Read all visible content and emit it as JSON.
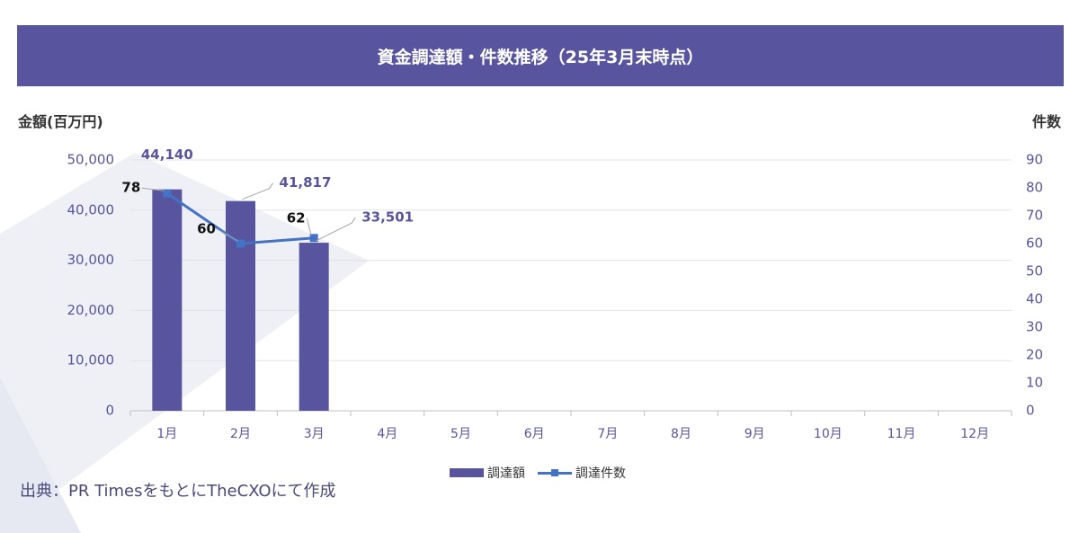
{
  "title": "資金調達額・件数推移（25年3月末時点）",
  "left_axis_title": "金額(百万円)",
  "right_axis_title": "件数",
  "source_text": "出典：PR TimesをもとにTheCXOにて作成",
  "colors": {
    "bar": "#58559e",
    "line": "#4472c4",
    "title_bg": "#58559e"
  },
  "chart_data": {
    "type": "bar",
    "categories": [
      "1月",
      "2月",
      "3月",
      "4月",
      "5月",
      "6月",
      "7月",
      "8月",
      "9月",
      "10月",
      "11月",
      "12月"
    ],
    "series": [
      {
        "name": "調達額",
        "type": "bar",
        "axis": "left",
        "values": [
          44140,
          41817,
          33501,
          null,
          null,
          null,
          null,
          null,
          null,
          null,
          null,
          null
        ]
      },
      {
        "name": "調達件数",
        "type": "line",
        "axis": "right",
        "values": [
          78,
          60,
          62,
          null,
          null,
          null,
          null,
          null,
          null,
          null,
          null,
          null
        ]
      }
    ],
    "bar_labels": [
      "44,140",
      "41,817",
      "33,501"
    ],
    "line_labels": [
      "78",
      "60",
      "62"
    ],
    "ylim_left": [
      0,
      50000
    ],
    "ylim_right": [
      0,
      90
    ],
    "yticks_left": [
      "0",
      "10,000",
      "20,000",
      "30,000",
      "40,000",
      "50,000"
    ],
    "yticks_right": [
      "0",
      "10",
      "20",
      "30",
      "40",
      "50",
      "60",
      "70",
      "80",
      "90"
    ],
    "grid": true,
    "legend_position": "bottom"
  }
}
